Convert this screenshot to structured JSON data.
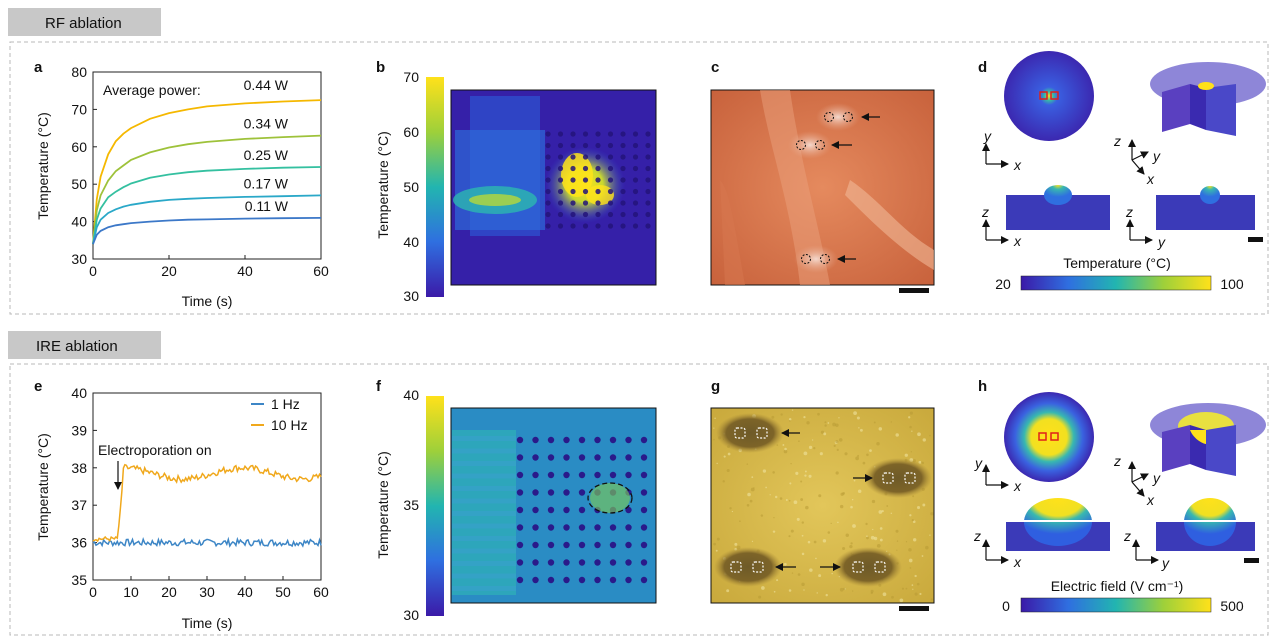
{
  "sections": {
    "rf_title": "RF ablation",
    "ire_title": "IRE ablation"
  },
  "panels": {
    "a": "a",
    "b": "b",
    "c": "c",
    "d": "d",
    "e": "e",
    "f": "f",
    "g": "g",
    "h": "h"
  },
  "chart_data": [
    {
      "type": "line",
      "panel": "a",
      "title": "",
      "xlabel": "Time (s)",
      "ylabel": "Temperature (°C)",
      "xlim": [
        0,
        60
      ],
      "ylim": [
        30,
        80
      ],
      "xticks": [
        "0",
        "20",
        "40",
        "60"
      ],
      "yticks": [
        "30",
        "40",
        "50",
        "60",
        "70",
        "80"
      ],
      "legend_title": "Average power:",
      "x": [
        0,
        1,
        2,
        4,
        6,
        8,
        10,
        15,
        20,
        25,
        30,
        40,
        50,
        60
      ],
      "series": [
        {
          "name": "0.44 W",
          "color": "#f5b800",
          "values": [
            34,
            46,
            52,
            58,
            61.5,
            63.5,
            65,
            67.5,
            69,
            70,
            70.8,
            71.6,
            72.1,
            72.5
          ]
        },
        {
          "name": "0.34 W",
          "color": "#9ec23a",
          "values": [
            34,
            43,
            47,
            51,
            53.5,
            55,
            56.5,
            58.5,
            59.8,
            60.7,
            61.3,
            62.1,
            62.6,
            63
          ]
        },
        {
          "name": "0.25 W",
          "color": "#34c0a0",
          "values": [
            34,
            40.5,
            43.5,
            46.5,
            48,
            49.2,
            50.2,
            51.7,
            52.6,
            53.2,
            53.6,
            54.1,
            54.4,
            54.6
          ]
        },
        {
          "name": "0.17 W",
          "color": "#2aa8c8",
          "values": [
            34,
            38.5,
            40.5,
            42.3,
            43.3,
            44,
            44.5,
            45.3,
            45.8,
            46.1,
            46.3,
            46.6,
            46.8,
            47
          ]
        },
        {
          "name": "0.11 W",
          "color": "#3c78c8",
          "values": [
            34,
            36.5,
            37.5,
            38.5,
            39,
            39.3,
            39.6,
            40,
            40.3,
            40.5,
            40.6,
            40.8,
            40.9,
            41
          ]
        }
      ]
    },
    {
      "type": "line",
      "panel": "e",
      "title": "",
      "xlabel": "Time (s)",
      "ylabel": "Temperature (°C)",
      "xlim": [
        0,
        60
      ],
      "ylim": [
        35,
        40
      ],
      "xticks": [
        "0",
        "10",
        "20",
        "30",
        "40",
        "50",
        "60"
      ],
      "yticks": [
        "35",
        "36",
        "37",
        "38",
        "39",
        "40"
      ],
      "annotation": "Electroporation on",
      "annotation_x": 7,
      "series": [
        {
          "name": "1 Hz",
          "color": "#3d86c6",
          "start": 36.05,
          "level": 36.0,
          "noise": 0.09
        },
        {
          "name": "10 Hz",
          "color": "#f0a81c",
          "start": 36.1,
          "level": 37.85,
          "noise": 0.09,
          "onset": 6.5
        }
      ]
    }
  ],
  "colorbars": {
    "b": {
      "label": "Temperature (°C)",
      "ticks": [
        "30",
        "40",
        "50",
        "60",
        "70"
      ]
    },
    "d": {
      "label": "Temperature (°C)",
      "min": "20",
      "max": "100"
    },
    "f": {
      "label": "Temperature (°C)",
      "ticks": [
        "30",
        "35",
        "40"
      ]
    },
    "h": {
      "label": "Electric field (V cm⁻¹)",
      "min": "0",
      "max": "500"
    }
  },
  "axes_labels": {
    "x": "x",
    "y": "y",
    "z": "z"
  }
}
